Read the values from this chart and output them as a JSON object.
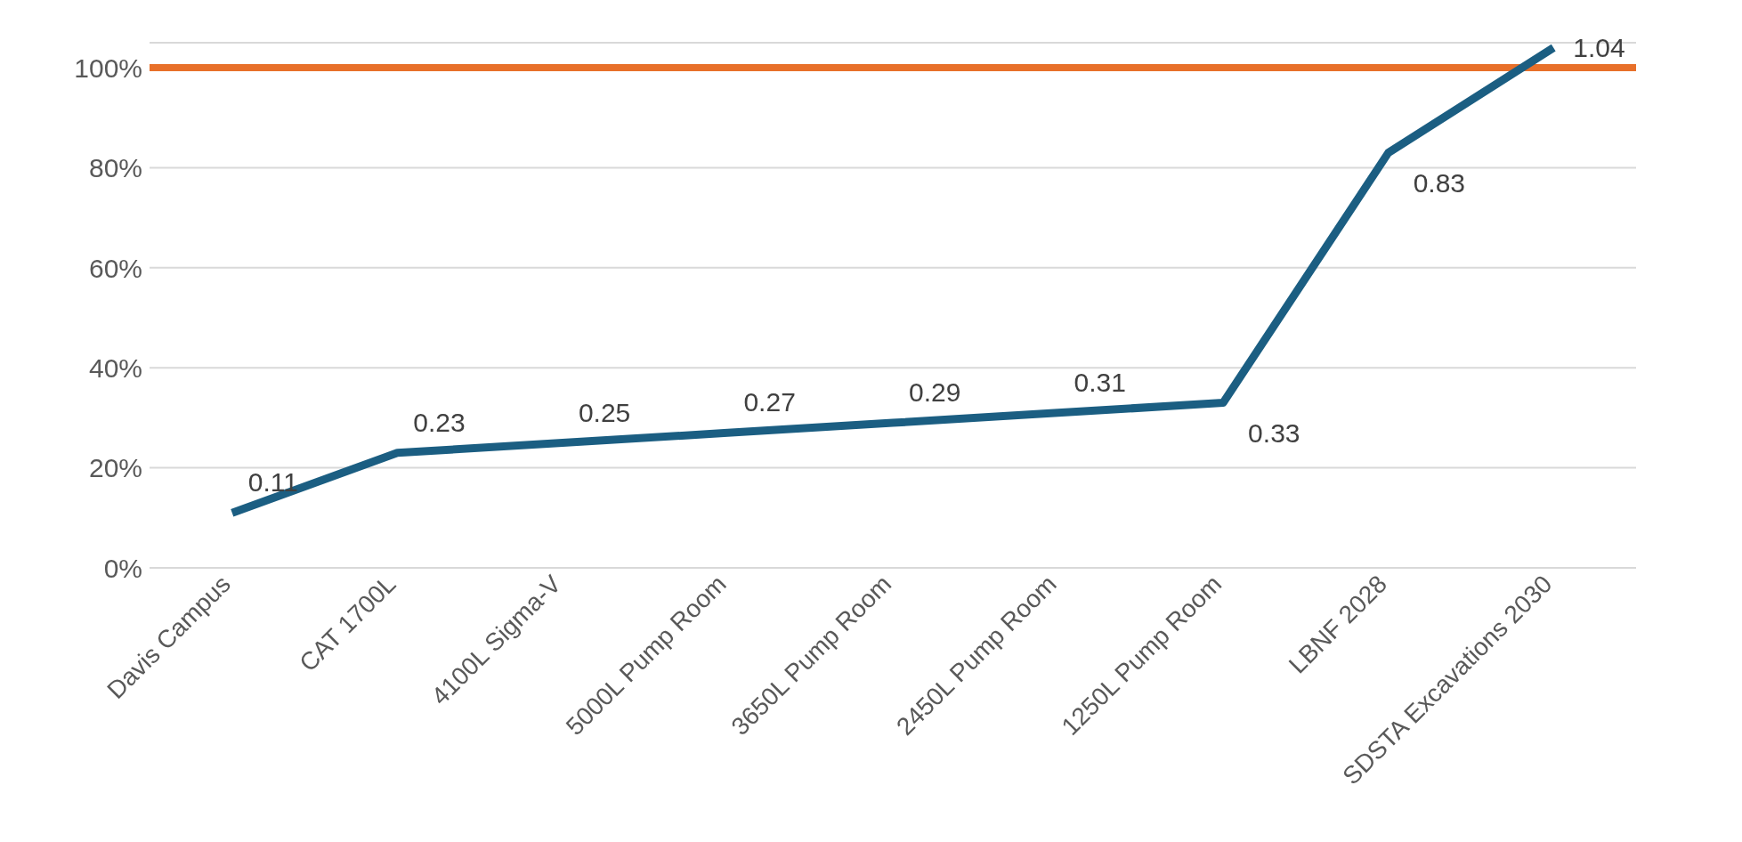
{
  "chart_data": {
    "type": "line",
    "categories": [
      "Davis Campus",
      "CAT 1700L",
      "4100L Sigma-V",
      "5000L Pump Room",
      "3650L Pump Room",
      "2450L Pump Room",
      "1250L Pump Room",
      "LBNF 2028",
      "SDSTA Excavations 2030"
    ],
    "series": [
      {
        "color": "#1b5e82",
        "values": [
          0.11,
          0.23,
          0.25,
          0.27,
          0.29,
          0.31,
          0.33,
          0.83,
          1.04
        ]
      }
    ],
    "ref_lines": [
      {
        "axis": "y",
        "value": 1,
        "color": "#e8702a"
      }
    ],
    "ylim": [
      0,
      1.05
    ],
    "yticks": [
      {
        "value": 0,
        "label": "0%"
      },
      {
        "value": 0.2,
        "label": "20%"
      },
      {
        "value": 0.4,
        "label": "40%"
      },
      {
        "value": 0.6,
        "label": "60%"
      },
      {
        "value": 0.8,
        "label": "80%"
      },
      {
        "value": 1,
        "label": "100%"
      }
    ],
    "grid": "y",
    "legend": false,
    "marker": "none",
    "line_style": "solid",
    "data_labels": true
  }
}
